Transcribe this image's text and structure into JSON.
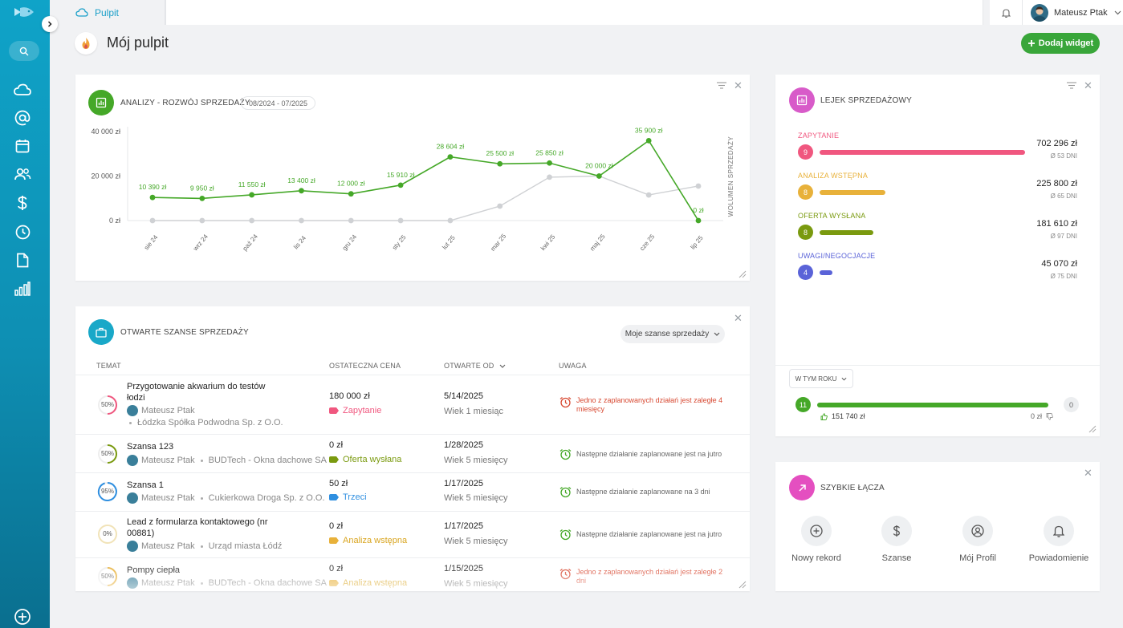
{
  "topbar": {
    "tab_label": "Pulpit",
    "user_name": "Mateusz Ptak"
  },
  "page": {
    "title": "Mój pulpit",
    "add_widget_label": "Dodaj widget"
  },
  "sales_chart": {
    "title": "ANALIZY - ROZWÓJ SPRZEDAŻY",
    "date_range": "08/2024 - 07/2025",
    "side_label": "WOLUMEN SPRZEDAŻY"
  },
  "chart_data": {
    "type": "line",
    "categories": [
      "sie 24",
      "wrz 24",
      "paź 24",
      "lis 24",
      "gru 24",
      "sty 25",
      "lut 25",
      "mar 25",
      "kwi 25",
      "maj 25",
      "cze 25",
      "lip 25"
    ],
    "y_tick_labels": [
      "40 000 zł",
      "20 000 zł",
      "0 zł"
    ],
    "ylim": [
      0,
      40000
    ],
    "series": [
      {
        "color": "#45a828",
        "values": [
          10390,
          9950,
          11550,
          13400,
          12000,
          15910,
          28604,
          25500,
          25850,
          20000,
          35900,
          0
        ],
        "labels": [
          "10 390 zł",
          "9 950 zł",
          "11 550 zł",
          "13 400 zł",
          "12 000 zł",
          "15 910 zł",
          "28 604 zł",
          "25 500 zł",
          "25 850 zł",
          "20 000 zł",
          "35 900 zł",
          "0 zł"
        ]
      },
      {
        "color": "#cfd1d4",
        "values": [
          0,
          0,
          0,
          0,
          0,
          0,
          0,
          6500,
          19500,
          20000,
          11500,
          15500
        ]
      }
    ]
  },
  "opportunities": {
    "title": "OTWARTE SZANSE SPRZEDAŻY",
    "filter_label": "Moje szanse sprzedaży",
    "headers": {
      "topic": "TEMAT",
      "price": "OSTATECZNA CENA",
      "opened": "OTWARTE OD",
      "note": "UWAGA"
    },
    "rows": [
      {
        "pct": "50%",
        "title": "Przygotowanie akwarium do testów łodzi",
        "owner": "Mateusz Ptak",
        "company": "Łódzka Spółka Podwodna Sp. z O.O.",
        "price": "180 000 zł",
        "stage": "Zapytanie",
        "date": "5/14/2025",
        "age": "Wiek 1 miesiąc",
        "note": "Jedno z zaplanowanych działań jest zaległe 4 miesięcy"
      },
      {
        "pct": "50%",
        "title": "Szansa 123",
        "owner": "Mateusz Ptak",
        "company": "BUDTech - Okna dachowe SA",
        "price": "0 zł",
        "stage": "Oferta wysłana",
        "date": "1/28/2025",
        "age": "Wiek 5 miesięcy",
        "note": "Następne działanie zaplanowane jest na jutro"
      },
      {
        "pct": "95%",
        "title": "Szansa 1",
        "owner": "Mateusz Ptak",
        "company": "Cukierkowa Droga Sp. z O.O.",
        "price": "50 zł",
        "stage": "Trzeci",
        "date": "1/17/2025",
        "age": "Wiek 5 miesięcy",
        "note": "Następne działanie zaplanowane na 3 dni"
      },
      {
        "pct": "0%",
        "title": "Lead z formularza kontaktowego (nr 00881)",
        "owner": "Mateusz Ptak",
        "company": "Urząd miasta Łódź",
        "price": "0 zł",
        "stage": "Analiza wstępna",
        "date": "1/17/2025",
        "age": "Wiek 5 miesięcy",
        "note": "Następne działanie zaplanowane jest na jutro"
      },
      {
        "pct": "50%",
        "title": "Pompy ciepła",
        "owner": "Mateusz Ptak",
        "company": "BUDTech - Okna dachowe SA",
        "price": "0 zł",
        "stage": "Analiza wstępna",
        "date": "1/15/2025",
        "age": "Wiek 5 miesięcy",
        "note": "Jedno z zaplanowanych działań jest zaległe 2 dni"
      }
    ]
  },
  "funnel": {
    "title": "LEJEK SPRZEDAŻOWY",
    "stages": [
      {
        "label": "ZAPYTANIE",
        "count": "9",
        "amount": "702 296 zł",
        "days": "Ø 53 DNI",
        "color": "#f0577f",
        "share": 1.0
      },
      {
        "label": "ANALIZA WSTĘPNA",
        "count": "8",
        "amount": "225 800 zł",
        "days": "Ø 65 DNI",
        "color": "#e8b13a",
        "share": 0.32
      },
      {
        "label": "OFERTA WYSŁANA",
        "count": "8",
        "amount": "181 610 zł",
        "days": "Ø 97 DNI",
        "color": "#7a9a0f",
        "share": 0.26
      },
      {
        "label": "UWAGI/NEGOCJACJE",
        "count": "4",
        "amount": "45 070 zł",
        "days": "Ø 75 DNI",
        "color": "#5a63d8",
        "share": 0.064
      }
    ],
    "year_filter": "W TYM ROKU",
    "won_count": "11",
    "lost_count": "0",
    "won_amount": "151 740 zł",
    "lost_amount": "0 zł"
  },
  "quick_links": {
    "title": "SZYBKIE ŁĄCZA",
    "items": [
      {
        "label": "Nowy rekord",
        "icon": "plus-circle-icon"
      },
      {
        "label": "Szanse",
        "icon": "dollar-icon"
      },
      {
        "label": "Mój Profil",
        "icon": "user-circle-icon"
      },
      {
        "label": "Powiadomienie",
        "icon": "bell-icon"
      }
    ]
  }
}
